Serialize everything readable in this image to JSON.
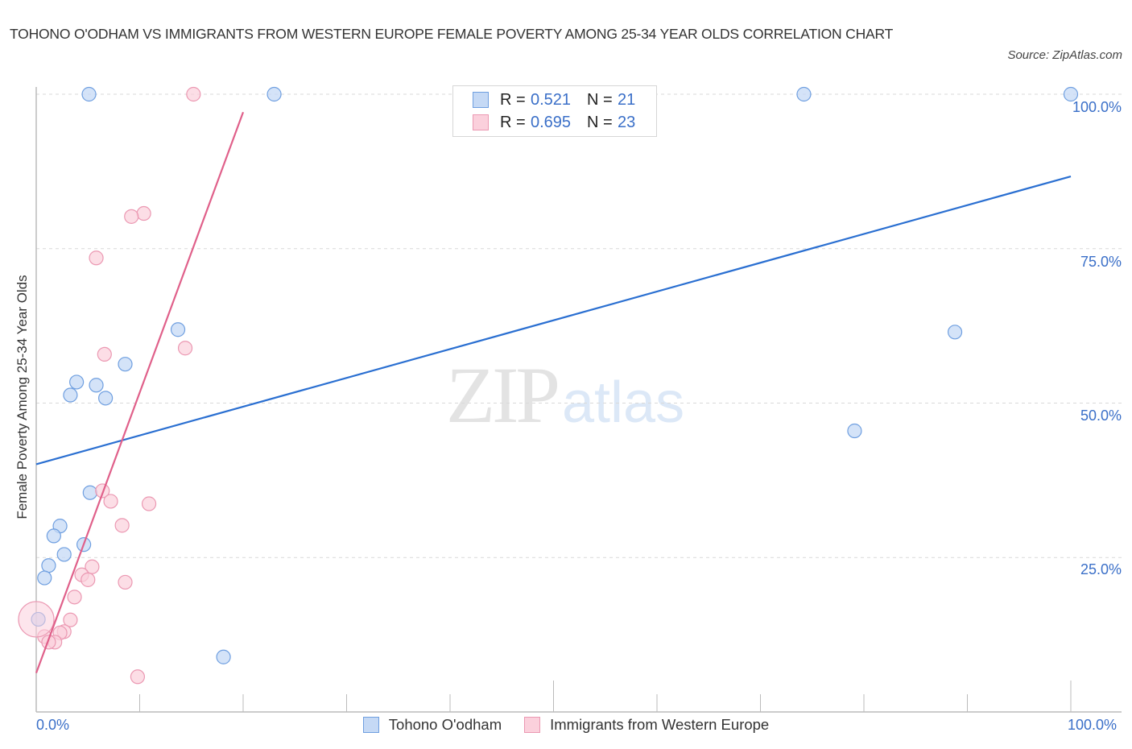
{
  "header": {
    "title": "TOHONO O'ODHAM VS IMMIGRANTS FROM WESTERN EUROPE FEMALE POVERTY AMONG 25-34 YEAR OLDS CORRELATION CHART",
    "source": "Source: ZipAtlas.com"
  },
  "watermark": {
    "zip": "ZIP",
    "atlas": "atlas"
  },
  "legend": {
    "rows": [
      {
        "swatch": "tohono-oodham",
        "r_label": "R =",
        "r_value": "0.521",
        "n_label": "N =",
        "n_value": "21"
      },
      {
        "swatch": "immigrants-western-europe",
        "r_label": "R =",
        "r_value": "0.695",
        "n_label": "N =",
        "n_value": "23"
      }
    ]
  },
  "axes": {
    "x_min_label": "0.0%",
    "x_max_label": "100.0%",
    "y_labels": [
      "100.0%",
      "75.0%",
      "50.0%",
      "25.0%"
    ],
    "y_title": "Female Poverty Among 25-34 Year Olds"
  },
  "bottom_legend": [
    "Tohono O'odham",
    "Immigrants from Western Europe"
  ],
  "colors": {
    "blue_fill": "#c5d9f5",
    "blue_stroke": "#6f9fe0",
    "blue_line": "#2a6fd1",
    "pink_fill": "#fbd0dc",
    "pink_stroke": "#eb98b2",
    "pink_line": "#e0608a",
    "tick_label": "#3a6fc8",
    "grid": "#d9d9d9"
  },
  "chart_data": {
    "type": "scatter",
    "title": "TOHONO O'ODHAM VS IMMIGRANTS FROM WESTERN EUROPE FEMALE POVERTY AMONG 25-34 YEAR OLDS CORRELATION CHART",
    "xlabel": "",
    "ylabel": "Female Poverty Among 25-34 Year Olds",
    "xlim": [
      0,
      100
    ],
    "ylim": [
      0,
      100
    ],
    "x_tick_labels": [
      "0.0%",
      "100.0%"
    ],
    "y_tick_labels": [
      "25.0%",
      "50.0%",
      "75.0%",
      "100.0%"
    ],
    "grid": "horizontal dashed at 25/50/75/100",
    "legend_position": "top-center (stats) and bottom-center (series)",
    "series": [
      {
        "name": "Tohono O'odham",
        "R": 0.521,
        "N": 21,
        "trend": {
          "x": [
            0,
            100
          ],
          "y": [
            40.1,
            86.7
          ]
        },
        "points": [
          [
            5.1,
            100
          ],
          [
            23.0,
            100
          ],
          [
            74.2,
            100
          ],
          [
            100,
            100
          ],
          [
            13.7,
            61.9
          ],
          [
            88.8,
            61.5
          ],
          [
            8.6,
            56.3
          ],
          [
            3.9,
            53.4
          ],
          [
            5.8,
            52.9
          ],
          [
            3.3,
            51.3
          ],
          [
            6.7,
            50.8
          ],
          [
            79.1,
            45.5
          ],
          [
            5.2,
            35.5
          ],
          [
            2.3,
            30.1
          ],
          [
            1.7,
            28.5
          ],
          [
            4.6,
            27.1
          ],
          [
            2.7,
            25.5
          ],
          [
            1.2,
            23.7
          ],
          [
            0.8,
            21.7
          ],
          [
            0.2,
            15.0
          ],
          [
            18.1,
            8.9
          ]
        ]
      },
      {
        "name": "Immigrants from Western Europe",
        "R": 0.695,
        "N": 23,
        "trend": {
          "x": [
            0,
            20
          ],
          "y": [
            6.3,
            97.1
          ]
        },
        "points": [
          [
            15.2,
            100
          ],
          [
            10.4,
            80.7
          ],
          [
            9.2,
            80.2
          ],
          [
            5.8,
            73.5
          ],
          [
            14.4,
            58.9
          ],
          [
            6.6,
            57.9
          ],
          [
            6.4,
            35.8
          ],
          [
            7.2,
            34.1
          ],
          [
            10.9,
            33.7
          ],
          [
            8.3,
            30.2
          ],
          [
            5.4,
            23.5
          ],
          [
            4.4,
            22.2
          ],
          [
            5.0,
            21.4
          ],
          [
            8.6,
            21.0
          ],
          [
            3.7,
            18.6
          ],
          [
            3.3,
            14.9
          ],
          [
            2.7,
            13.0
          ],
          [
            2.3,
            12.8
          ],
          [
            0.8,
            12.2
          ],
          [
            1.8,
            11.3
          ],
          [
            1.2,
            11.3
          ],
          [
            0.0,
            15.0
          ],
          [
            9.8,
            5.7
          ]
        ]
      }
    ]
  }
}
